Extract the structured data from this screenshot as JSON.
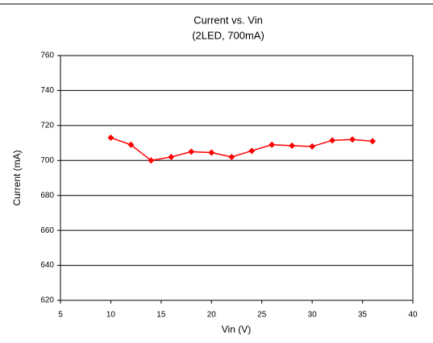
{
  "chart_data": {
    "type": "line",
    "title": "Current vs. Vin",
    "subtitle": "(2LED, 700mA)",
    "x_label": "Vin (V)",
    "y_label": "Current (mA)",
    "x": [
      10,
      12,
      14,
      16,
      18,
      20,
      22,
      24,
      26,
      28,
      30,
      32,
      34,
      36
    ],
    "series": [
      {
        "name": "Current",
        "color": "#ff0000",
        "values": [
          713,
          709,
          700,
          702,
          705,
          704.5,
          702,
          705.5,
          709,
          708.5,
          708,
          711.5,
          712,
          711
        ]
      }
    ],
    "xlim": [
      5,
      40
    ],
    "xticks": [
      5,
      10,
      15,
      20,
      25,
      30,
      35,
      40
    ],
    "ylim": [
      620,
      760
    ],
    "yticks": [
      620,
      640,
      660,
      680,
      700,
      720,
      740,
      760
    ],
    "grid": true
  }
}
